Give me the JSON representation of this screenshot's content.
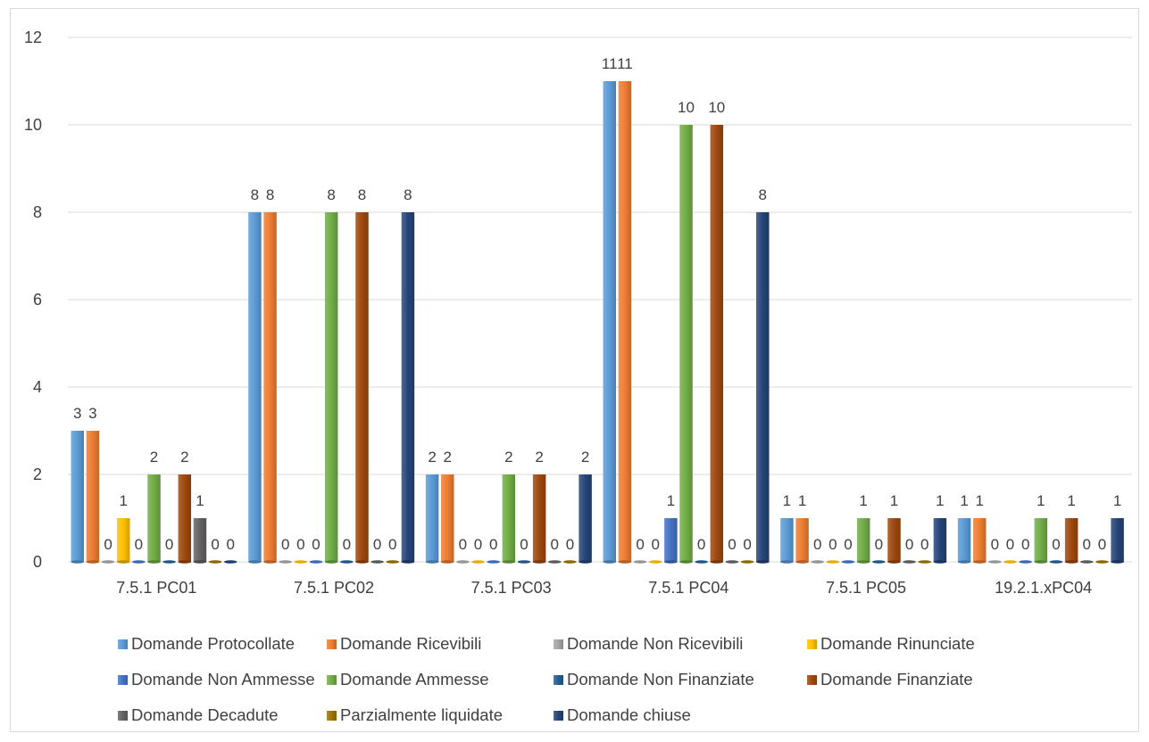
{
  "chart_data": {
    "type": "bar",
    "categories": [
      "7.5.1 PC01",
      "7.5.1 PC02",
      "7.5.1 PC03",
      "7.5.1 PC04",
      "7.5.1 PC05",
      "19.2.1.xPC04"
    ],
    "ylim": [
      0,
      12
    ],
    "yticks": [
      0,
      2,
      4,
      6,
      8,
      10,
      12
    ],
    "grid": true,
    "legend_position": "bottom",
    "series": [
      {
        "name": "Domande Protocollate",
        "color": "#5b9bd5",
        "values": [
          3,
          8,
          2,
          11,
          1,
          1
        ]
      },
      {
        "name": "Domande Ricevibili",
        "color": "#ed7d31",
        "values": [
          3,
          8,
          2,
          11,
          1,
          1
        ]
      },
      {
        "name": "Domande Non Ricevibili",
        "color": "#a5a5a5",
        "values": [
          0,
          0,
          0,
          0,
          0,
          0
        ]
      },
      {
        "name": "Domande Rinunciate",
        "color": "#ffc000",
        "values": [
          1,
          0,
          0,
          0,
          0,
          0
        ]
      },
      {
        "name": "Domande Non Ammesse",
        "color": "#4472c4",
        "values": [
          0,
          0,
          0,
          1,
          0,
          0
        ]
      },
      {
        "name": "Domande Ammesse",
        "color": "#70ad47",
        "values": [
          2,
          8,
          2,
          10,
          1,
          1
        ]
      },
      {
        "name": "Domande Non Finanziate",
        "color": "#255e91",
        "values": [
          0,
          0,
          0,
          0,
          0,
          0
        ]
      },
      {
        "name": "Domande Finanziate",
        "color": "#9e480e",
        "values": [
          2,
          8,
          2,
          10,
          1,
          1
        ]
      },
      {
        "name": "Domande Decadute",
        "color": "#636363",
        "values": [
          1,
          0,
          0,
          0,
          0,
          0
        ]
      },
      {
        "name": "Parzialmente liquidate",
        "color": "#997300",
        "values": [
          0,
          0,
          0,
          0,
          0,
          0
        ]
      },
      {
        "name": "Domande chiuse",
        "color": "#264478",
        "values": [
          0,
          8,
          2,
          8,
          1,
          1
        ]
      }
    ],
    "legend_rows": [
      [
        0,
        1,
        2,
        3
      ],
      [
        4,
        5,
        6,
        7
      ],
      [
        8,
        9,
        10
      ]
    ]
  }
}
